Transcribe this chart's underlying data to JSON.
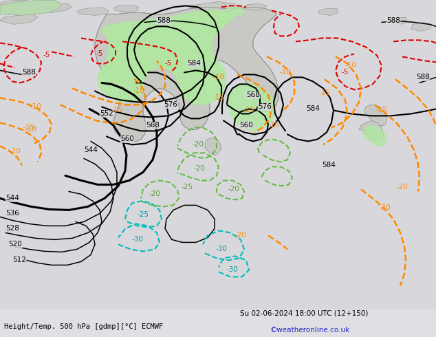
{
  "bottom_left": "Height/Temp. 500 hPa [gdmp][°C] ECMWF",
  "bottom_right": "Su 02-06-2024 18:00 UTC (12+150)",
  "bottom_credit": "©weatheronline.co.uk",
  "bg_color": "#d4d4d8",
  "figsize": [
    6.34,
    4.9
  ],
  "dpi": 100,
  "extent": [
    60,
    210,
    -70,
    20
  ]
}
